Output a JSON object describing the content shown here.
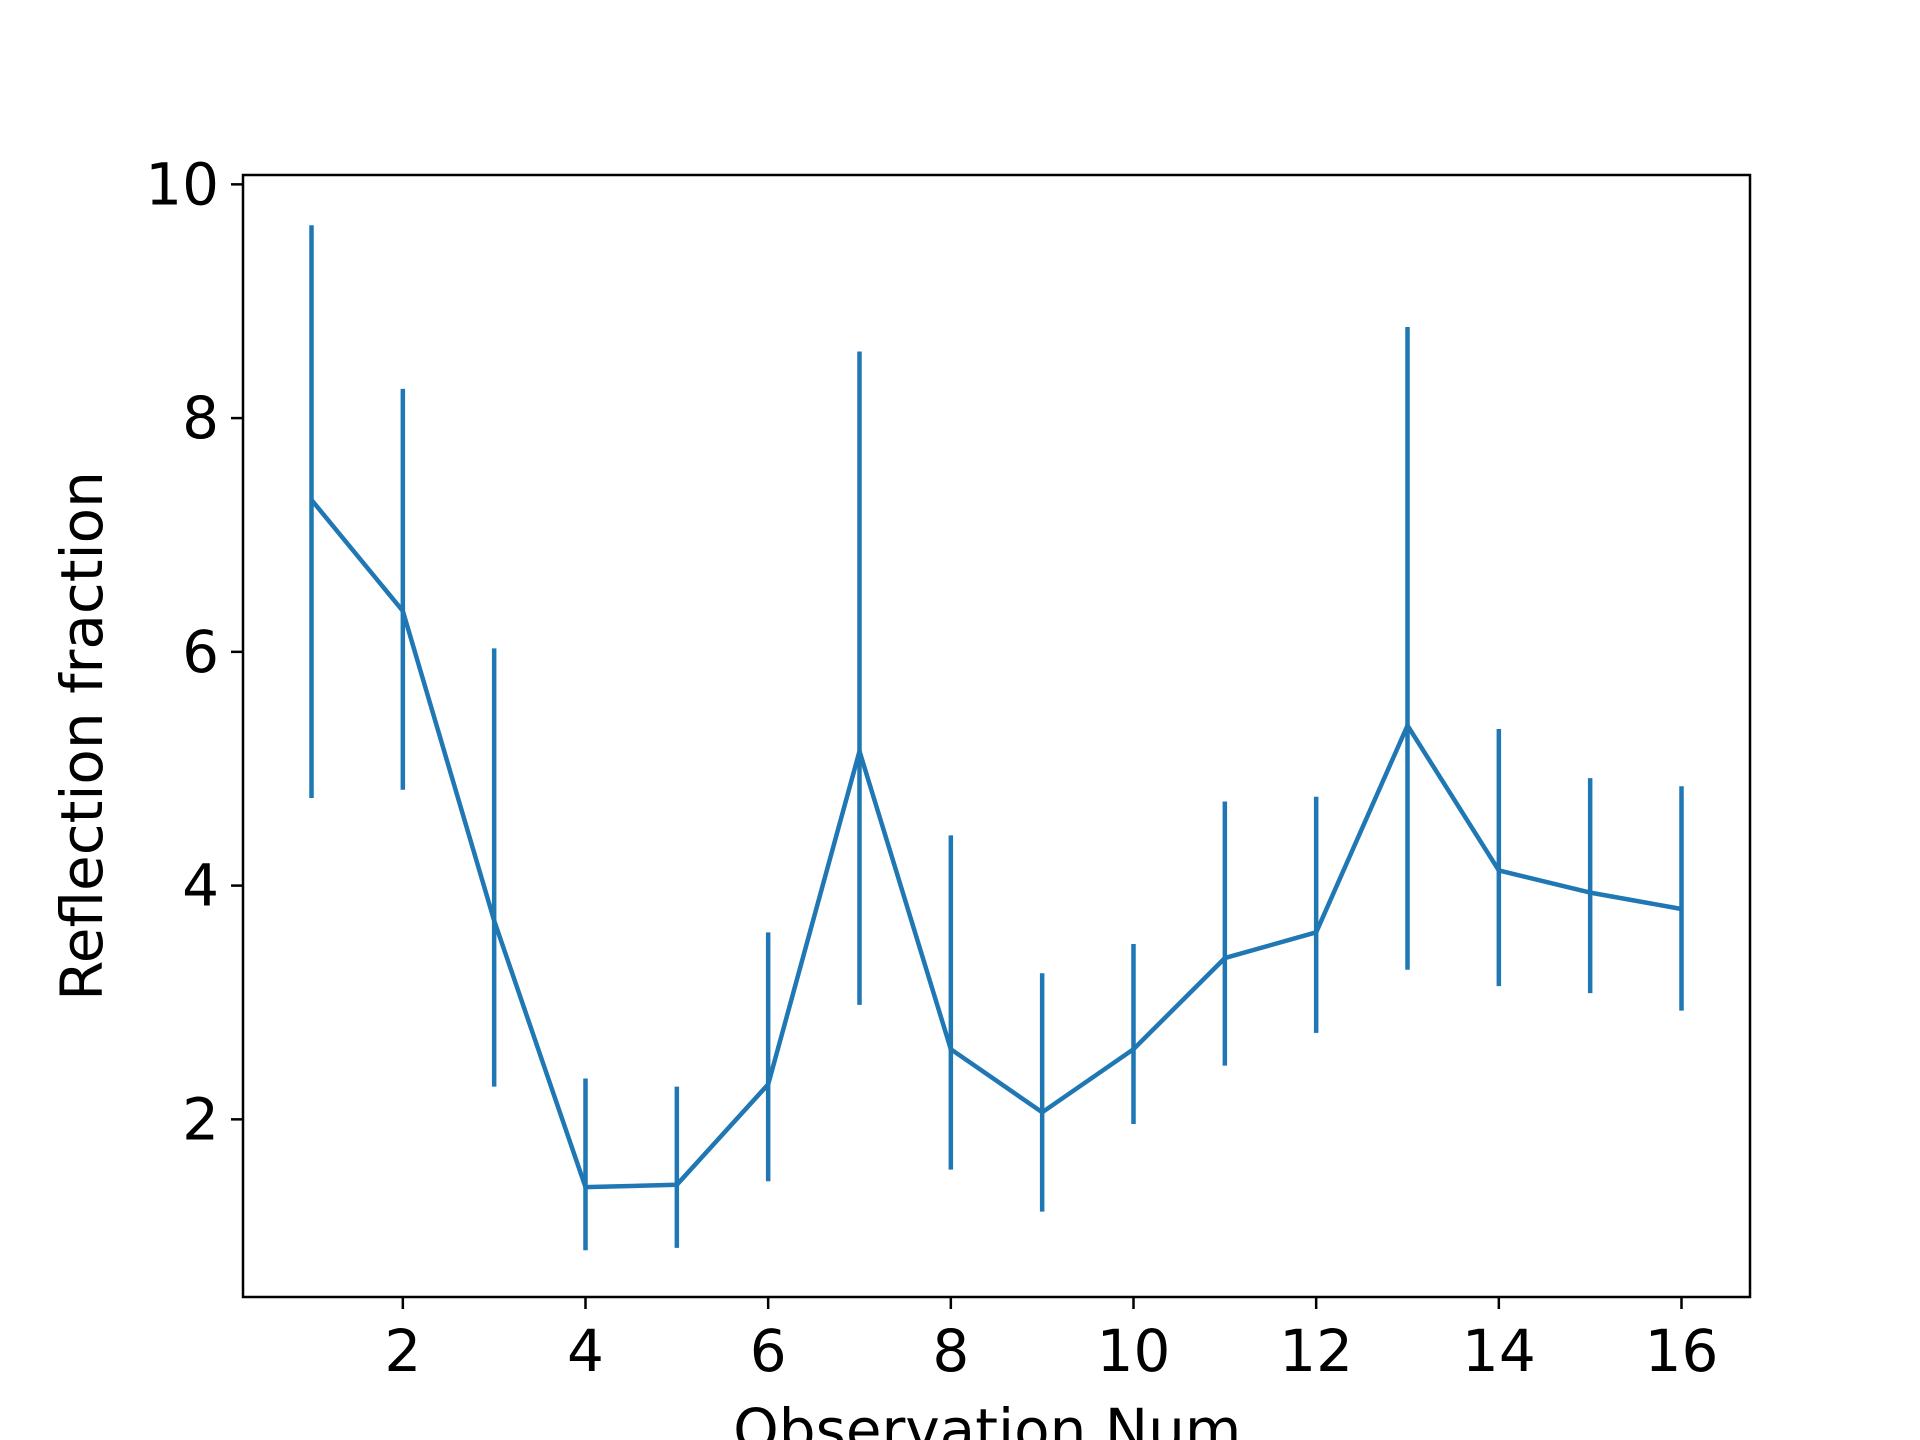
{
  "chart_data": {
    "type": "line",
    "title": "",
    "xlabel": "Observation Num.",
    "ylabel": "Reflection fraction",
    "xlim": [
      0.25,
      16.75
    ],
    "ylim": [
      0.48,
      10.08
    ],
    "grid": false,
    "xticks": [
      2,
      4,
      6,
      8,
      10,
      12,
      14,
      16
    ],
    "yticks": [
      2,
      4,
      6,
      8,
      10
    ],
    "x": [
      1,
      2,
      3,
      4,
      5,
      6,
      7,
      8,
      9,
      10,
      11,
      12,
      13,
      14,
      15,
      16
    ],
    "series": [
      {
        "values": [
          7.3,
          6.35,
          3.7,
          1.42,
          1.44,
          2.3,
          5.15,
          2.6,
          2.06,
          2.6,
          3.38,
          3.6,
          5.37,
          4.13,
          3.94,
          3.8
        ],
        "err_low": [
          4.75,
          4.82,
          2.28,
          0.88,
          0.9,
          1.47,
          2.98,
          1.57,
          1.21,
          1.96,
          2.46,
          2.74,
          3.28,
          3.14,
          3.08,
          2.93
        ],
        "err_high": [
          9.65,
          8.25,
          6.03,
          2.35,
          2.28,
          3.6,
          8.57,
          4.43,
          3.25,
          3.5,
          4.72,
          4.76,
          8.78,
          5.34,
          4.92,
          4.85
        ],
        "color": "#1f77b4"
      }
    ]
  }
}
